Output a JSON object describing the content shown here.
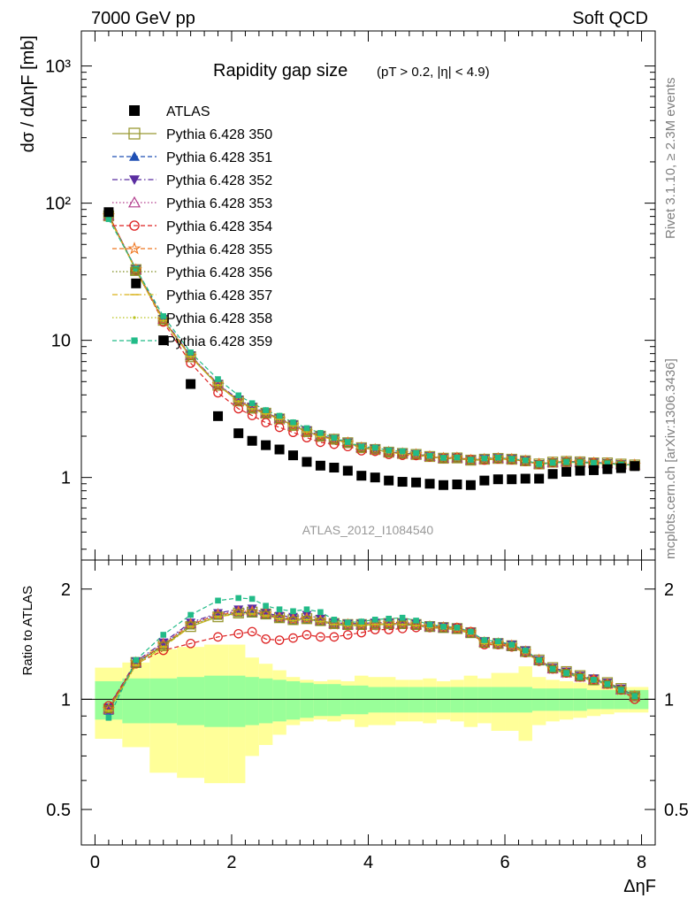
{
  "header": {
    "left": "7000 GeV pp",
    "right": "Soft QCD"
  },
  "side_labels": {
    "rivet": "Rivet 3.1.10, ≥ 2.3M events",
    "mcplots": "mcplots.cern.ch [arXiv:1306.3436]"
  },
  "chart_data": {
    "type": "scatter",
    "title_main": "Rapidity gap size",
    "title_cut": "(pT > 0.2, |η| < 4.9)",
    "analysis_label": "ATLAS_2012_I1084540",
    "ylabel": "dσ / dΔηF [mb]",
    "ratio_ylabel": "Ratio to ATLAS",
    "xlabel": "ΔηF",
    "xlim": [
      -0.2,
      8.2
    ],
    "ylim": [
      0.25,
      1800
    ],
    "yscale": "log",
    "ratio_ylim": [
      0.4,
      2.4
    ],
    "x_ticks": [
      "0",
      "2",
      "4",
      "6",
      "8"
    ],
    "y_ticks": [
      "1",
      "10",
      "10²",
      "10³"
    ],
    "ratio_ticks": [
      "0.5",
      "1",
      "2"
    ],
    "legend_position": "top-left",
    "x": [
      0.2,
      0.6,
      1.0,
      1.4,
      1.8,
      2.1,
      2.3,
      2.5,
      2.7,
      2.9,
      3.1,
      3.3,
      3.5,
      3.7,
      3.9,
      4.1,
      4.3,
      4.5,
      4.7,
      4.9,
      5.1,
      5.3,
      5.5,
      5.7,
      5.9,
      6.1,
      6.3,
      6.5,
      6.7,
      6.9,
      7.1,
      7.3,
      7.5,
      7.7,
      7.9
    ],
    "data": {
      "name": "ATLAS",
      "values": [
        86,
        26,
        10,
        4.8,
        2.8,
        2.1,
        1.85,
        1.72,
        1.6,
        1.45,
        1.3,
        1.22,
        1.18,
        1.12,
        1.03,
        1.0,
        0.95,
        0.93,
        0.92,
        0.9,
        0.88,
        0.89,
        0.88,
        0.95,
        0.97,
        0.97,
        0.98,
        0.98,
        1.06,
        1.1,
        1.12,
        1.13,
        1.15,
        1.17,
        1.21
      ],
      "ratio_band_inner": [
        0.12,
        0.14,
        0.14,
        0.15,
        0.16,
        0.16,
        0.15,
        0.14,
        0.13,
        0.12,
        0.11,
        0.1,
        0.1,
        0.09,
        0.09,
        0.08,
        0.08,
        0.08,
        0.08,
        0.08,
        0.08,
        0.08,
        0.08,
        0.08,
        0.08,
        0.08,
        0.08,
        0.07,
        0.07,
        0.07,
        0.07,
        0.06,
        0.06,
        0.06,
        0.06
      ],
      "ratio_band_outer": [
        0.22,
        0.26,
        0.37,
        0.39,
        0.41,
        0.41,
        0.3,
        0.25,
        0.2,
        0.15,
        0.13,
        0.12,
        0.13,
        0.12,
        0.16,
        0.15,
        0.15,
        0.13,
        0.13,
        0.14,
        0.12,
        0.13,
        0.16,
        0.14,
        0.18,
        0.18,
        0.23,
        0.15,
        0.13,
        0.12,
        0.11,
        0.1,
        0.09,
        0.08,
        0.08
      ]
    },
    "series": [
      {
        "name": "Pythia 6.428 350",
        "color": "#999933",
        "marker": "open-square",
        "dash": "solid",
        "ratio": [
          0.94,
          1.26,
          1.4,
          1.58,
          1.68,
          1.72,
          1.73,
          1.71,
          1.67,
          1.65,
          1.66,
          1.64,
          1.61,
          1.6,
          1.6,
          1.6,
          1.61,
          1.61,
          1.6,
          1.58,
          1.57,
          1.56,
          1.52,
          1.43,
          1.42,
          1.4,
          1.35,
          1.28,
          1.22,
          1.19,
          1.16,
          1.13,
          1.11,
          1.07,
          1.02
        ]
      },
      {
        "name": "Pythia 6.428 351",
        "color": "#1f4fb4",
        "marker": "filled-triangle",
        "dash": "dashed",
        "ratio": [
          0.93,
          1.25,
          1.41,
          1.6,
          1.7,
          1.73,
          1.72,
          1.7,
          1.67,
          1.65,
          1.66,
          1.63,
          1.6,
          1.59,
          1.59,
          1.6,
          1.6,
          1.6,
          1.59,
          1.57,
          1.56,
          1.55,
          1.51,
          1.43,
          1.42,
          1.39,
          1.35,
          1.27,
          1.21,
          1.18,
          1.15,
          1.13,
          1.1,
          1.06,
          1.02
        ]
      },
      {
        "name": "Pythia 6.428 352",
        "color": "#5a2da0",
        "marker": "filled-inv-triangle",
        "dash": "dashdot",
        "ratio": [
          0.95,
          1.27,
          1.43,
          1.62,
          1.72,
          1.76,
          1.77,
          1.72,
          1.69,
          1.68,
          1.7,
          1.66,
          1.62,
          1.61,
          1.61,
          1.62,
          1.62,
          1.62,
          1.61,
          1.59,
          1.58,
          1.57,
          1.53,
          1.44,
          1.43,
          1.41,
          1.36,
          1.28,
          1.22,
          1.19,
          1.16,
          1.14,
          1.11,
          1.07,
          1.02
        ]
      },
      {
        "name": "Pythia 6.428 353",
        "color": "#b23c8c",
        "marker": "open-triangle",
        "dash": "dotted",
        "ratio": [
          0.94,
          1.26,
          1.42,
          1.61,
          1.71,
          1.74,
          1.74,
          1.71,
          1.68,
          1.66,
          1.67,
          1.64,
          1.61,
          1.6,
          1.6,
          1.6,
          1.61,
          1.61,
          1.6,
          1.58,
          1.57,
          1.56,
          1.52,
          1.43,
          1.42,
          1.4,
          1.35,
          1.28,
          1.21,
          1.18,
          1.15,
          1.13,
          1.1,
          1.06,
          1.02
        ]
      },
      {
        "name": "Pythia 6.428 354",
        "color": "#dd2222",
        "marker": "open-circle",
        "dash": "dashed",
        "ratio": [
          0.96,
          1.25,
          1.36,
          1.42,
          1.48,
          1.51,
          1.53,
          1.46,
          1.45,
          1.47,
          1.5,
          1.48,
          1.48,
          1.5,
          1.52,
          1.55,
          1.55,
          1.56,
          1.57,
          1.57,
          1.57,
          1.57,
          1.53,
          1.41,
          1.41,
          1.39,
          1.34,
          1.27,
          1.21,
          1.18,
          1.15,
          1.13,
          1.1,
          1.06,
          1.0
        ]
      },
      {
        "name": "Pythia 6.428 355",
        "color": "#ee7722",
        "marker": "open-star",
        "dash": "dashed",
        "ratio": [
          0.94,
          1.26,
          1.41,
          1.6,
          1.7,
          1.73,
          1.73,
          1.71,
          1.67,
          1.65,
          1.66,
          1.64,
          1.6,
          1.6,
          1.6,
          1.6,
          1.61,
          1.61,
          1.6,
          1.58,
          1.57,
          1.56,
          1.52,
          1.43,
          1.42,
          1.4,
          1.35,
          1.28,
          1.21,
          1.18,
          1.15,
          1.13,
          1.1,
          1.06,
          1.02
        ]
      },
      {
        "name": "Pythia 6.428 356",
        "color": "#7b8a1a",
        "marker": "open-square-small",
        "dash": "dotted",
        "ratio": [
          0.94,
          1.25,
          1.4,
          1.59,
          1.69,
          1.72,
          1.72,
          1.7,
          1.66,
          1.64,
          1.65,
          1.63,
          1.6,
          1.59,
          1.59,
          1.6,
          1.6,
          1.6,
          1.59,
          1.57,
          1.56,
          1.55,
          1.51,
          1.42,
          1.41,
          1.39,
          1.34,
          1.27,
          1.21,
          1.18,
          1.15,
          1.12,
          1.1,
          1.06,
          1.02
        ]
      },
      {
        "name": "Pythia 6.428 357",
        "color": "#d9b21a",
        "marker": "bar",
        "dash": "dashdot",
        "ratio": [
          0.93,
          1.24,
          1.39,
          1.58,
          1.68,
          1.71,
          1.71,
          1.69,
          1.66,
          1.64,
          1.65,
          1.63,
          1.6,
          1.59,
          1.59,
          1.6,
          1.6,
          1.6,
          1.59,
          1.57,
          1.56,
          1.55,
          1.51,
          1.42,
          1.41,
          1.39,
          1.34,
          1.27,
          1.21,
          1.17,
          1.15,
          1.12,
          1.1,
          1.06,
          1.02
        ]
      },
      {
        "name": "Pythia 6.428 358",
        "color": "#b8c21a",
        "marker": "dot",
        "dash": "dotted",
        "ratio": [
          0.93,
          1.24,
          1.39,
          1.58,
          1.68,
          1.71,
          1.71,
          1.69,
          1.66,
          1.64,
          1.65,
          1.63,
          1.6,
          1.59,
          1.59,
          1.6,
          1.6,
          1.6,
          1.59,
          1.57,
          1.56,
          1.55,
          1.51,
          1.42,
          1.41,
          1.39,
          1.34,
          1.27,
          1.21,
          1.17,
          1.15,
          1.12,
          1.1,
          1.06,
          1.02
        ]
      },
      {
        "name": "Pythia 6.428 359",
        "color": "#22bb88",
        "marker": "filled-square-small",
        "dash": "dashed",
        "ratio": [
          0.89,
          1.28,
          1.5,
          1.7,
          1.86,
          1.89,
          1.88,
          1.8,
          1.76,
          1.74,
          1.76,
          1.73,
          1.65,
          1.62,
          1.63,
          1.65,
          1.66,
          1.67,
          1.64,
          1.6,
          1.58,
          1.57,
          1.53,
          1.45,
          1.44,
          1.41,
          1.36,
          1.28,
          1.21,
          1.18,
          1.15,
          1.13,
          1.1,
          1.06,
          1.02
        ]
      }
    ]
  }
}
